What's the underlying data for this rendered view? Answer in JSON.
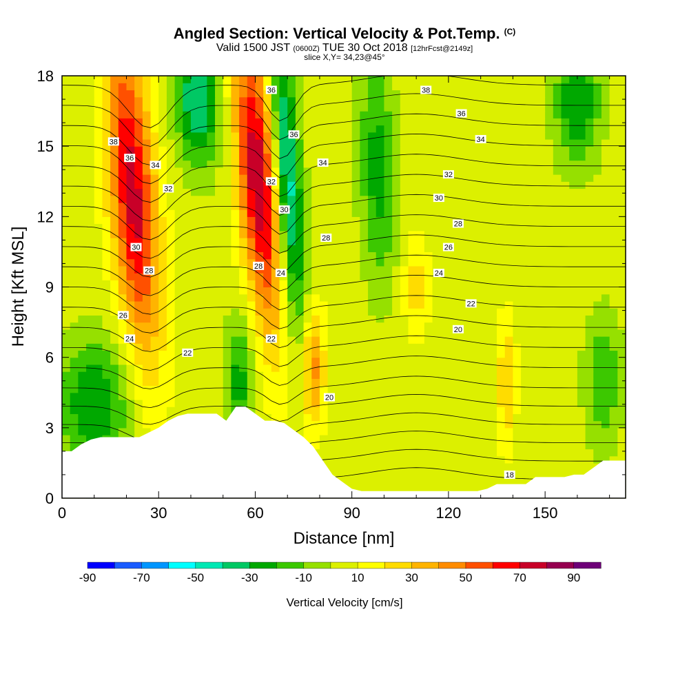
{
  "titles": {
    "main": "Angled Section: Vertical Velocity & Pot.Temp.",
    "main_units": "(C)",
    "valid_a": "Valid 1500 JST",
    "valid_b": "(0600Z)",
    "valid_c": "TUE 30 Oct 2018",
    "valid_d": "[12hrFcst@2149z]",
    "slice": "slice X,Y= 34,23@45°"
  },
  "chart_data": {
    "type": "heatmap",
    "xlabel": "Distance [nm]",
    "ylabel": "Height [Kft MSL]",
    "xlim": [
      0,
      175
    ],
    "ylim": [
      0,
      18
    ],
    "xticks": [
      "0",
      "30",
      "60",
      "90",
      "120",
      "150"
    ],
    "yticks": [
      "0",
      "3",
      "6",
      "9",
      "12",
      "15",
      "18"
    ],
    "colorbar": {
      "title": "Vertical Velocity [cm/s]",
      "levels": [
        -90,
        -80,
        -70,
        -60,
        -50,
        -40,
        -30,
        -20,
        -10,
        0,
        10,
        20,
        30,
        40,
        50,
        60,
        70,
        80,
        90,
        100
      ],
      "tick_labels": [
        "-90",
        "-70",
        "-50",
        "-30",
        "-10",
        "10",
        "30",
        "50",
        "70",
        "90"
      ],
      "colors": [
        "#0000ff",
        "#1a5cff",
        "#0096ff",
        "#00ffff",
        "#00e8b4",
        "#00c864",
        "#00a800",
        "#3cc800",
        "#96e000",
        "#dcf000",
        "#ffff00",
        "#ffdc00",
        "#ffb400",
        "#ff8c00",
        "#ff5000",
        "#ff0000",
        "#c80028",
        "#960050",
        "#6e0078"
      ]
    },
    "velocity_features": [
      {
        "x": 22,
        "y": 13.0,
        "value": 70,
        "sx": 5.0,
        "sy": 5.0,
        "tilt": 0.55
      },
      {
        "x": 61,
        "y": 13.5,
        "value": 75,
        "sx": 4.5,
        "sy": 4.5,
        "tilt": 0.6
      },
      {
        "x": 70,
        "y": 13.5,
        "value": -55,
        "sx": 3.0,
        "sy": 4.5,
        "tilt": 0.45
      },
      {
        "x": 42,
        "y": 17.0,
        "value": -45,
        "sx": 5.0,
        "sy": 2.0,
        "tilt": 0.3
      },
      {
        "x": 10,
        "y": 4.0,
        "value": -35,
        "sx": 8.0,
        "sy": 2.0,
        "tilt": 0
      },
      {
        "x": 55,
        "y": 5.0,
        "value": -30,
        "sx": 3.0,
        "sy": 2.0,
        "tilt": 0
      },
      {
        "x": 98,
        "y": 14.0,
        "value": -30,
        "sx": 4.0,
        "sy": 3.5,
        "tilt": 0.2
      },
      {
        "x": 160,
        "y": 17.0,
        "value": -35,
        "sx": 5.0,
        "sy": 2.0,
        "tilt": 0
      },
      {
        "x": 168,
        "y": 5.0,
        "value": -25,
        "sx": 4.0,
        "sy": 2.0,
        "tilt": 0
      },
      {
        "x": 78,
        "y": 5.5,
        "value": 40,
        "sx": 2.5,
        "sy": 1.8,
        "tilt": 0
      },
      {
        "x": 138,
        "y": 5.0,
        "value": 25,
        "sx": 2.0,
        "sy": 2.0,
        "tilt": 0
      },
      {
        "x": 110,
        "y": 9.0,
        "value": 20,
        "sx": 3.0,
        "sy": 1.5,
        "tilt": 0
      }
    ],
    "theta_contours": {
      "levels": [
        18,
        19,
        20,
        21,
        22,
        23,
        24,
        25,
        26,
        27,
        28,
        29,
        30,
        31,
        32,
        33,
        34,
        35,
        36,
        37,
        38
      ],
      "labels": [
        {
          "text": "38",
          "x": 16,
          "y": 15.2
        },
        {
          "text": "36",
          "x": 21,
          "y": 14.5
        },
        {
          "text": "34",
          "x": 29,
          "y": 14.2
        },
        {
          "text": "32",
          "x": 33,
          "y": 13.2
        },
        {
          "text": "30",
          "x": 23,
          "y": 10.7
        },
        {
          "text": "28",
          "x": 27,
          "y": 9.7
        },
        {
          "text": "26",
          "x": 19,
          "y": 7.8
        },
        {
          "text": "24",
          "x": 21,
          "y": 6.8
        },
        {
          "text": "22",
          "x": 39,
          "y": 6.2
        },
        {
          "text": "36",
          "x": 65,
          "y": 17.4
        },
        {
          "text": "36",
          "x": 72,
          "y": 15.5
        },
        {
          "text": "34",
          "x": 81,
          "y": 14.3
        },
        {
          "text": "32",
          "x": 65,
          "y": 13.5
        },
        {
          "text": "30",
          "x": 69,
          "y": 12.3
        },
        {
          "text": "28",
          "x": 82,
          "y": 11.1
        },
        {
          "text": "28",
          "x": 61,
          "y": 9.9
        },
        {
          "text": "24",
          "x": 68,
          "y": 9.6
        },
        {
          "text": "22",
          "x": 65,
          "y": 6.8
        },
        {
          "text": "20",
          "x": 83,
          "y": 4.3
        },
        {
          "text": "38",
          "x": 113,
          "y": 17.4
        },
        {
          "text": "36",
          "x": 124,
          "y": 16.4
        },
        {
          "text": "34",
          "x": 130,
          "y": 15.3
        },
        {
          "text": "32",
          "x": 120,
          "y": 13.8
        },
        {
          "text": "30",
          "x": 117,
          "y": 12.8
        },
        {
          "text": "28",
          "x": 123,
          "y": 11.7
        },
        {
          "text": "26",
          "x": 120,
          "y": 10.7
        },
        {
          "text": "24",
          "x": 117,
          "y": 9.6
        },
        {
          "text": "22",
          "x": 127,
          "y": 8.3
        },
        {
          "text": "20",
          "x": 123,
          "y": 7.2
        },
        {
          "text": "18",
          "x": 139,
          "y": 1.0
        }
      ]
    },
    "terrain_kft": {
      "x": [
        0,
        3,
        6,
        9,
        12,
        15,
        18,
        21,
        24,
        27,
        30,
        33,
        36,
        39,
        42,
        45,
        48,
        51,
        54,
        57,
        60,
        63,
        66,
        69,
        72,
        75,
        78,
        81,
        84,
        87,
        90,
        93,
        96,
        99,
        102,
        105,
        108,
        111,
        114,
        117,
        120,
        123,
        126,
        129,
        132,
        135,
        138,
        141,
        144,
        147,
        150,
        153,
        156,
        159,
        162,
        165,
        168,
        171,
        175
      ],
      "height": [
        2.0,
        2.0,
        2.3,
        2.5,
        2.6,
        2.6,
        2.6,
        2.6,
        2.6,
        2.8,
        3.0,
        3.3,
        3.5,
        3.6,
        3.6,
        3.6,
        3.6,
        3.3,
        3.9,
        3.9,
        3.6,
        3.3,
        3.3,
        3.2,
        2.9,
        2.6,
        2.2,
        1.6,
        1.0,
        0.7,
        0.4,
        0.3,
        0.3,
        0.3,
        0.3,
        0.3,
        0.3,
        0.3,
        0.3,
        0.3,
        0.3,
        0.3,
        0.3,
        0.3,
        0.4,
        0.6,
        0.6,
        0.6,
        0.6,
        0.9,
        0.9,
        0.9,
        0.9,
        1.0,
        1.0,
        1.3,
        1.6,
        1.6,
        1.6
      ]
    }
  }
}
